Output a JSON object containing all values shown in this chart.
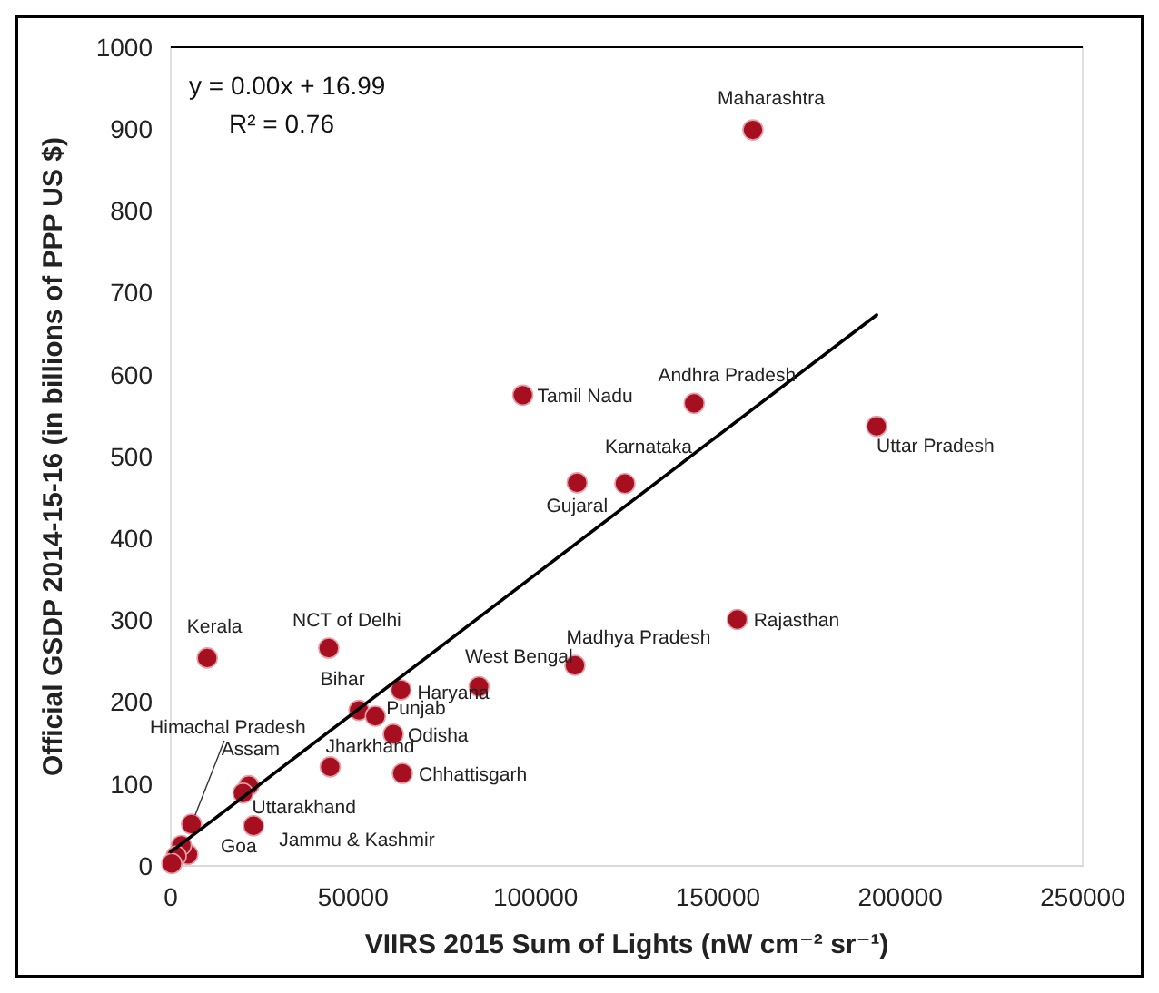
{
  "chart_data": {
    "type": "scatter",
    "xlabel": "VIIRS 2015 Sum of Lights (nW cm⁻² sr⁻¹)",
    "ylabel": "Official GSDP 2014-15-16 (in billions of PPP US $)",
    "xlim": [
      0,
      250000
    ],
    "xticks": [
      0,
      50000,
      100000,
      150000,
      200000,
      250000
    ],
    "ylim": [
      0,
      1000
    ],
    "yticks": [
      0,
      100,
      200,
      300,
      400,
      500,
      600,
      700,
      800,
      900,
      1000
    ],
    "grid": false,
    "marker": "circle",
    "series": [
      {
        "color": "#a50f1f",
        "x": [
          159600,
          96500,
          143500,
          193500,
          124500,
          111400,
          155300,
          110800,
          84500,
          63100,
          51600,
          56100,
          61000,
          63500,
          43700,
          43300,
          10000,
          5700,
          21400,
          19800,
          22700,
          4700,
          2900,
          1500,
          300
        ],
        "values": [
          899,
          575,
          565,
          537,
          467,
          468,
          301,
          245,
          219,
          215,
          190,
          183,
          161,
          113,
          121,
          266,
          254,
          51,
          98,
          89,
          49,
          14,
          25,
          12,
          3
        ]
      },
      {
        "type": "line",
        "color": "#000000",
        "line_style": "solid",
        "marker": "none",
        "x": [
          0,
          193500
        ],
        "values": [
          17,
          673
        ]
      }
    ],
    "annotations": [
      "y = 0.00x + 16.99",
      "R² = 0.76",
      {
        "text": "Maharashtra",
        "x": 159600,
        "y": 899
      },
      {
        "text": "Tamil Nadu",
        "x": 96500,
        "y": 575
      },
      {
        "text": "Andhra Pradesh",
        "x": 143500,
        "y": 565
      },
      {
        "text": "Uttar Pradesh",
        "x": 193500,
        "y": 537
      },
      {
        "text": "Karnataka",
        "x": 124500,
        "y": 467
      },
      {
        "text": "Gujaral",
        "x": 111400,
        "y": 468
      },
      {
        "text": "Rajasthan",
        "x": 155300,
        "y": 301
      },
      {
        "text": "Madhya Pradesh",
        "x": 110800,
        "y": 245
      },
      {
        "text": "West Bengal",
        "x": 84500,
        "y": 219
      },
      {
        "text": "Haryana",
        "x": 63100,
        "y": 215
      },
      {
        "text": "Bihar",
        "x": 51600,
        "y": 190
      },
      {
        "text": "Punjab",
        "x": 56100,
        "y": 183
      },
      {
        "text": "Odisha",
        "x": 61000,
        "y": 161
      },
      {
        "text": "Chhattisgarh",
        "x": 63500,
        "y": 113
      },
      {
        "text": "Jharkhand",
        "x": 43700,
        "y": 121
      },
      {
        "text": "NCT of Delhi",
        "x": 43300,
        "y": 266
      },
      {
        "text": "Kerala",
        "x": 10000,
        "y": 254
      },
      {
        "text": "Himachal Pradesh",
        "x": 5700,
        "y": 51
      },
      {
        "text": "Assam",
        "x": 21400,
        "y": 98
      },
      {
        "text": "Uttarakhand",
        "x": 19800,
        "y": 89
      },
      {
        "text": "Jammu & Kashmir",
        "x": 22700,
        "y": 49
      },
      {
        "text": "Goa",
        "x": 4700,
        "y": 14
      }
    ]
  }
}
